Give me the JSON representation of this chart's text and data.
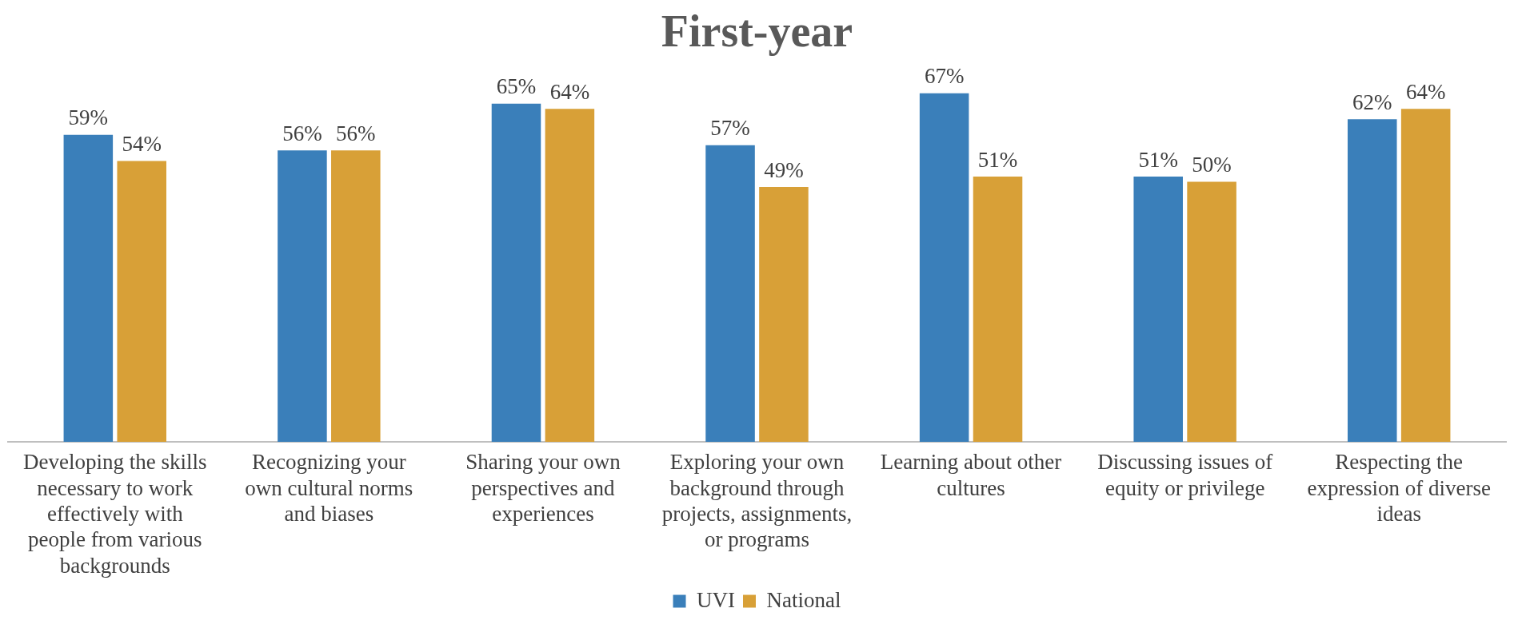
{
  "chart_data": {
    "type": "bar",
    "title": "First-year",
    "categories": [
      "Developing the skills necessary to work effectively with people from various backgrounds",
      "Recognizing your own cultural norms and biases",
      "Sharing your own perspectives and experiences",
      "Exploring your own background through projects, assignments, or programs",
      "Learning about other cultures",
      "Discussing issues of equity or privilege",
      "Respecting the expression of diverse ideas"
    ],
    "series": [
      {
        "name": "UVI",
        "color": "#3a7fba",
        "values": [
          59,
          56,
          65,
          57,
          67,
          51,
          62
        ],
        "value_labels": [
          "59%",
          "56%",
          "65%",
          "57%",
          "67%",
          "51%",
          "62%"
        ]
      },
      {
        "name": "National",
        "color": "#d8a037",
        "values": [
          54,
          56,
          64,
          49,
          51,
          50,
          64
        ],
        "value_labels": [
          "54%",
          "56%",
          "64%",
          "49%",
          "51%",
          "50%",
          "64%"
        ]
      }
    ],
    "legend": "bottom",
    "grid": false
  }
}
